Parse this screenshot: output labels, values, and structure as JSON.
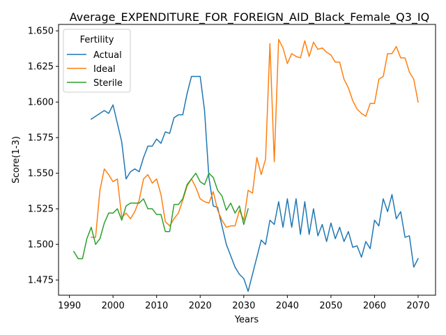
{
  "chart_data": {
    "type": "line",
    "title": "Average_EXPENDITURE_FOR_FOREIGN_AID_Black_Female_Q3_IQ",
    "xlabel": "Years",
    "ylabel": "Score(1-3)",
    "xlim": [
      1987.5,
      2074
    ],
    "ylim": [
      1.4643,
      1.6545
    ],
    "xticks": [
      1990,
      2000,
      2010,
      2020,
      2030,
      2040,
      2050,
      2060,
      2070
    ],
    "yticks": [
      1.475,
      1.5,
      1.525,
      1.55,
      1.575,
      1.6,
      1.625,
      1.65
    ],
    "ytick_labels": [
      "1.475",
      "1.500",
      "1.525",
      "1.550",
      "1.575",
      "1.600",
      "1.625",
      "1.650"
    ],
    "grid": false,
    "legend": {
      "title": "Fertility",
      "placement": "top-left",
      "entries": [
        "Actual",
        "Ideal",
        "Sterile"
      ]
    },
    "series": [
      {
        "name": "Actual",
        "color": "#1f77b4",
        "x": [
          1995,
          1996,
          1997,
          1998,
          1999,
          2000,
          2001,
          2002,
          2003,
          2004,
          2005,
          2006,
          2007,
          2008,
          2009,
          2010,
          2011,
          2012,
          2013,
          2014,
          2015,
          2016,
          2017,
          2018,
          2019,
          2020,
          2021,
          2022,
          2023,
          2024,
          2025,
          2026,
          2027,
          2028,
          2029,
          2030,
          2031,
          2032,
          2033,
          2034,
          2035,
          2036,
          2037,
          2038,
          2039,
          2040,
          2041,
          2042,
          2043,
          2044,
          2045,
          2046,
          2047,
          2048,
          2049,
          2050,
          2051,
          2052,
          2053,
          2054,
          2055,
          2056,
          2057,
          2058,
          2059,
          2060,
          2061,
          2062,
          2063,
          2064,
          2065,
          2066,
          2067,
          2068,
          2069,
          2070
        ],
        "y": [
          1.588,
          1.59,
          1.592,
          1.594,
          1.592,
          1.598,
          1.585,
          1.572,
          1.546,
          1.551,
          1.553,
          1.551,
          1.561,
          1.569,
          1.569,
          1.574,
          1.571,
          1.579,
          1.578,
          1.589,
          1.591,
          1.591,
          1.606,
          1.618,
          1.618,
          1.618,
          1.594,
          1.547,
          1.527,
          1.526,
          1.513,
          1.5,
          1.492,
          1.484,
          1.479,
          1.476,
          1.467,
          1.479,
          1.491,
          1.503,
          1.5,
          1.517,
          1.514,
          1.53,
          1.512,
          1.532,
          1.512,
          1.532,
          1.507,
          1.53,
          1.507,
          1.525,
          1.506,
          1.514,
          1.502,
          1.515,
          1.504,
          1.512,
          1.502,
          1.509,
          1.498,
          1.499,
          1.491,
          1.502,
          1.497,
          1.517,
          1.513,
          1.532,
          1.523,
          1.535,
          1.518,
          1.523,
          1.505,
          1.506,
          1.484,
          1.49
        ]
      },
      {
        "name": "Ideal",
        "color": "#ff7f0e",
        "x": [
          1995,
          1996,
          1997,
          1998,
          1999,
          2000,
          2001,
          2002,
          2003,
          2004,
          2005,
          2006,
          2007,
          2008,
          2009,
          2010,
          2011,
          2012,
          2013,
          2014,
          2015,
          2016,
          2017,
          2018,
          2019,
          2020,
          2021,
          2022,
          2023,
          2024,
          2025,
          2026,
          2027,
          2028,
          2029,
          2030,
          2031,
          2032,
          2033,
          2034,
          2035,
          2036,
          2037,
          2038,
          2039,
          2040,
          2041,
          2042,
          2043,
          2044,
          2045,
          2046,
          2047,
          2048,
          2049,
          2050,
          2051,
          2052,
          2053,
          2054,
          2055,
          2056,
          2057,
          2058,
          2059,
          2060,
          2061,
          2062,
          2063,
          2064,
          2065,
          2066,
          2067,
          2068,
          2069,
          2070
        ],
        "y": [
          1.505,
          1.505,
          1.538,
          1.553,
          1.549,
          1.544,
          1.546,
          1.519,
          1.522,
          1.518,
          1.523,
          1.531,
          1.546,
          1.549,
          1.543,
          1.546,
          1.535,
          1.516,
          1.513,
          1.518,
          1.522,
          1.531,
          1.541,
          1.546,
          1.54,
          1.532,
          1.53,
          1.529,
          1.537,
          1.524,
          1.517,
          1.512,
          1.513,
          1.513,
          1.524,
          1.517,
          1.538,
          1.536,
          1.561,
          1.549,
          1.56,
          1.641,
          1.558,
          1.644,
          1.638,
          1.627,
          1.634,
          1.632,
          1.631,
          1.643,
          1.632,
          1.642,
          1.637,
          1.638,
          1.635,
          1.633,
          1.628,
          1.628,
          1.616,
          1.61,
          1.601,
          1.595,
          1.592,
          1.59,
          1.599,
          1.599,
          1.616,
          1.618,
          1.634,
          1.634,
          1.639,
          1.631,
          1.631,
          1.621,
          1.616,
          1.6
        ]
      },
      {
        "name": "Sterile",
        "color": "#2ca02c",
        "x": [
          1991,
          1992,
          1993,
          1994,
          1995,
          1996,
          1997,
          1998,
          1999,
          2000,
          2001,
          2002,
          2003,
          2004,
          2005,
          2006,
          2007,
          2008,
          2009,
          2010,
          2011,
          2012,
          2013,
          2014,
          2015,
          2016,
          2017,
          2018,
          2019,
          2020,
          2021,
          2022,
          2023,
          2024,
          2025,
          2026,
          2027,
          2028,
          2029,
          2030,
          2031
        ],
        "y": [
          1.495,
          1.49,
          1.49,
          1.504,
          1.512,
          1.5,
          1.504,
          1.515,
          1.522,
          1.522,
          1.525,
          1.517,
          1.527,
          1.529,
          1.529,
          1.529,
          1.532,
          1.525,
          1.525,
          1.521,
          1.521,
          1.509,
          1.509,
          1.528,
          1.528,
          1.532,
          1.542,
          1.546,
          1.55,
          1.544,
          1.542,
          1.55,
          1.547,
          1.538,
          1.534,
          1.524,
          1.529,
          1.522,
          1.527,
          1.514,
          1.525
        ]
      }
    ]
  }
}
